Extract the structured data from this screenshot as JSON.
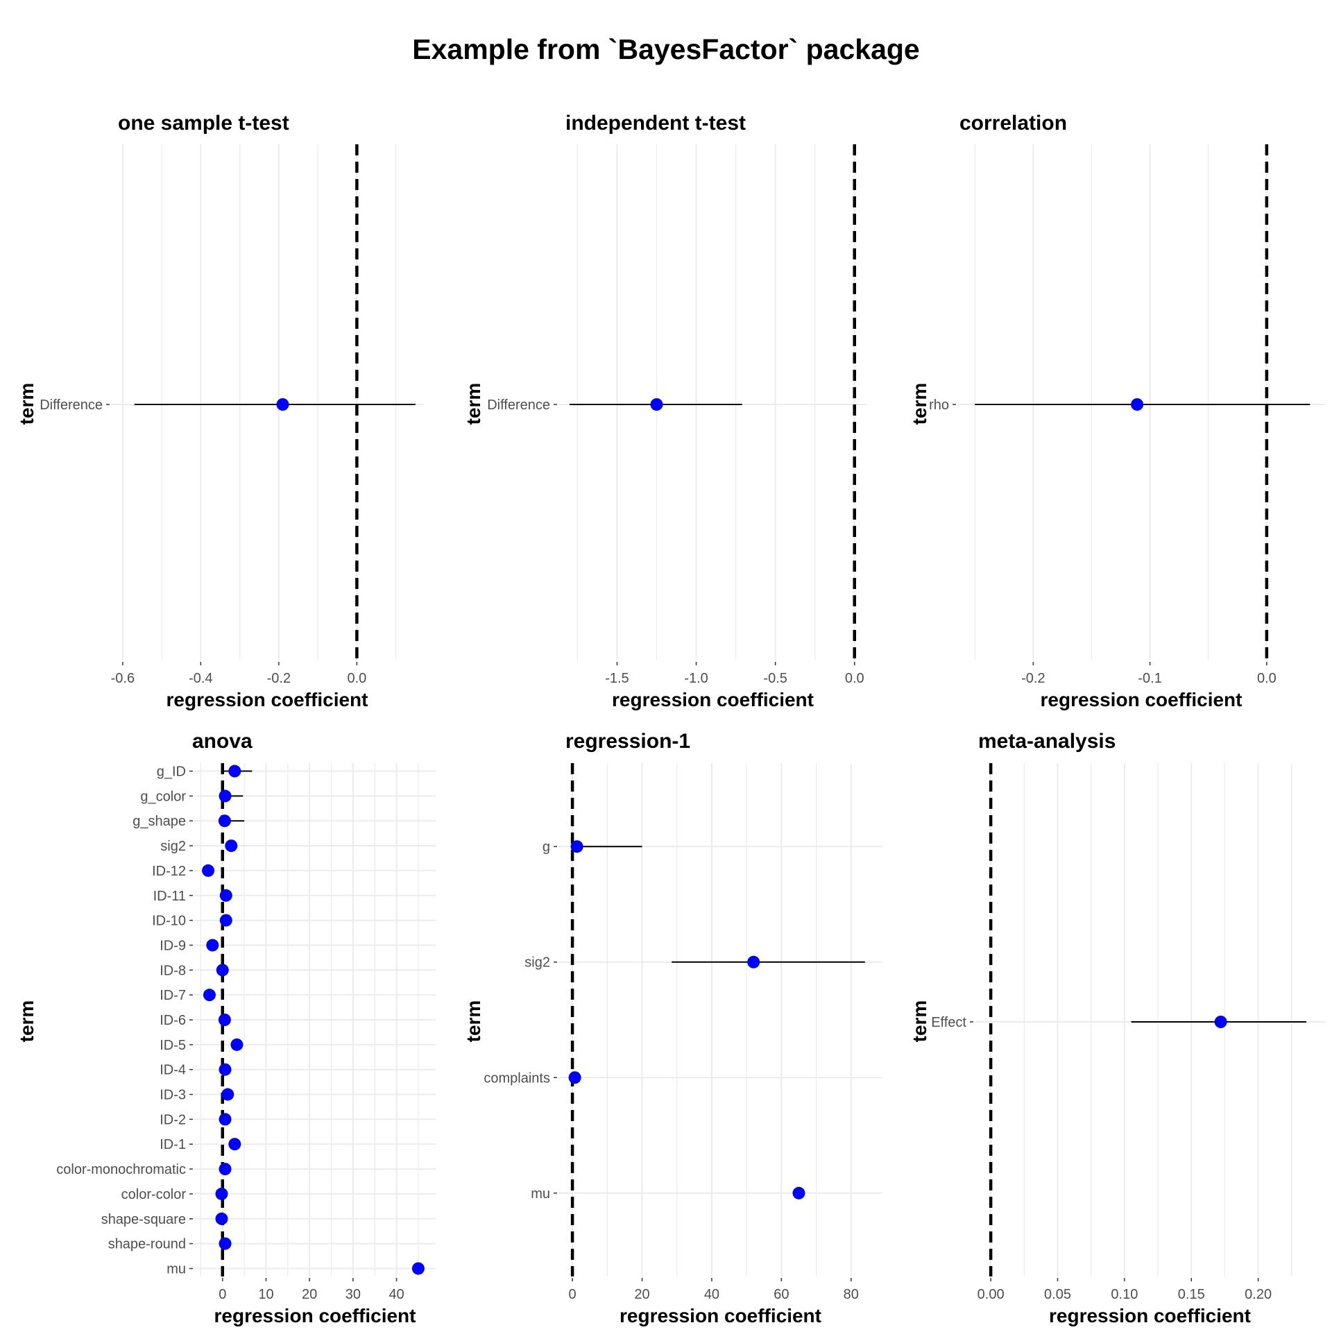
{
  "title": "Example from `BayesFactor` package",
  "colors": {
    "point": "#0000ff",
    "grid": "#ebebeb",
    "interval": "#000000",
    "zero_line": "#000000",
    "tick_text": "#4d4d4d"
  },
  "chart_data": [
    {
      "type": "scatter",
      "title": "one sample t-test",
      "xlabel": "regression coefficient",
      "ylabel": "term",
      "xlim": [
        -0.63,
        0.17
      ],
      "x_ticks": [
        -0.6,
        -0.4,
        -0.2,
        0.0
      ],
      "x_tick_labels": [
        "-0.6",
        "-0.4",
        "-0.2",
        "0.0"
      ],
      "reference_line": 0,
      "terms": [
        "Difference"
      ],
      "estimates": [
        -0.19
      ],
      "lower": [
        -0.57
      ],
      "upper": [
        0.15
      ]
    },
    {
      "type": "scatter",
      "title": "independent t-test",
      "xlabel": "regression coefficient",
      "ylabel": "term",
      "xlim": [
        -1.87,
        0.08
      ],
      "x_ticks": [
        -1.5,
        -1.0,
        -0.5,
        0.0
      ],
      "x_tick_labels": [
        "-1.5",
        "-1.0",
        "-0.5",
        "0.0"
      ],
      "reference_line": 0,
      "terms": [
        "Difference"
      ],
      "estimates": [
        -1.25
      ],
      "lower": [
        -1.8
      ],
      "upper": [
        -0.71
      ]
    },
    {
      "type": "scatter",
      "title": "correlation",
      "xlabel": "regression coefficient",
      "ylabel": "term",
      "xlim": [
        -0.265,
        0.05
      ],
      "x_ticks": [
        -0.2,
        -0.1,
        0.0
      ],
      "x_tick_labels": [
        "-0.2",
        "-0.1",
        "0.0"
      ],
      "reference_line": 0,
      "terms": [
        "rho"
      ],
      "estimates": [
        -0.111
      ],
      "lower": [
        -0.25
      ],
      "upper": [
        0.037
      ]
    },
    {
      "type": "scatter",
      "title": "anova",
      "xlabel": "regression coefficient",
      "ylabel": "term",
      "xlim": [
        -6.5,
        49
      ],
      "x_ticks": [
        0,
        10,
        20,
        30,
        40
      ],
      "x_tick_labels": [
        "0",
        "10",
        "20",
        "30",
        "40"
      ],
      "reference_line": 0,
      "terms": [
        "g_ID",
        "g_color",
        "g_shape",
        "sig2",
        "ID-12",
        "ID-11",
        "ID-10",
        "ID-9",
        "ID-8",
        "ID-7",
        "ID-6",
        "ID-5",
        "ID-4",
        "ID-3",
        "ID-2",
        "ID-1",
        "color-monochromatic",
        "color-color",
        "shape-square",
        "shape-round",
        "mu"
      ],
      "estimates": [
        2.8,
        0.6,
        0.5,
        2.0,
        -3.3,
        0.8,
        0.8,
        -2.3,
        0.0,
        -3.0,
        0.5,
        3.3,
        0.6,
        1.2,
        0.6,
        2.8,
        0.6,
        -0.2,
        -0.2,
        0.6,
        45.0
      ],
      "lower": [
        0.3,
        0.1,
        0.1,
        1.2,
        -4.0,
        0.0,
        0.0,
        -3.0,
        -0.7,
        -3.7,
        -0.2,
        2.6,
        -0.1,
        0.5,
        -0.1,
        2.1,
        -0.1,
        -0.9,
        -0.9,
        -0.1,
        44.3
      ],
      "upper": [
        6.8,
        4.7,
        5.0,
        2.8,
        -2.6,
        1.5,
        1.5,
        -1.6,
        0.7,
        -2.3,
        1.2,
        4.0,
        1.3,
        1.9,
        1.3,
        3.5,
        1.3,
        0.5,
        0.5,
        1.3,
        45.7
      ]
    },
    {
      "type": "scatter",
      "title": "regression-1",
      "xlabel": "regression coefficient",
      "ylabel": "term",
      "xlim": [
        -4,
        89
      ],
      "x_ticks": [
        0,
        20,
        40,
        60,
        80
      ],
      "x_tick_labels": [
        "0",
        "20",
        "40",
        "60",
        "80"
      ],
      "reference_line": 0,
      "terms": [
        "g",
        "sig2",
        "complaints",
        "mu"
      ],
      "estimates": [
        1.3,
        52.0,
        0.7,
        65.0
      ],
      "lower": [
        0.3,
        28.5,
        0.4,
        63.5
      ],
      "upper": [
        20.0,
        84.0,
        1.0,
        66.5
      ]
    },
    {
      "type": "scatter",
      "title": "meta-analysis",
      "xlabel": "regression coefficient",
      "ylabel": "term",
      "xlim": [
        -0.012,
        0.25
      ],
      "x_ticks": [
        0.0,
        0.05,
        0.1,
        0.15,
        0.2
      ],
      "x_tick_labels": [
        "0.00",
        "0.05",
        "0.10",
        "0.15",
        "0.20"
      ],
      "reference_line": 0,
      "terms": [
        "Effect"
      ],
      "estimates": [
        0.172
      ],
      "lower": [
        0.105
      ],
      "upper": [
        0.236
      ]
    }
  ]
}
